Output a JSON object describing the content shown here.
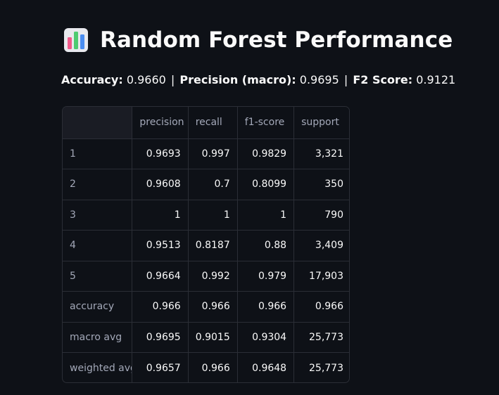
{
  "header": {
    "title": "Random Forest Performance",
    "icon": "bar-chart-icon"
  },
  "metrics": {
    "accuracy_label": "Accuracy:",
    "accuracy_value": "0.9660",
    "precision_label": "Precision (macro):",
    "precision_value": "0.9695",
    "f2_label": "F2 Score:",
    "f2_value": "0.9121",
    "separator": "|"
  },
  "report": {
    "columns": [
      "",
      "precision",
      "recall",
      "f1-score",
      "support"
    ],
    "rows": [
      [
        "1",
        "0.9693",
        "0.997",
        "0.9829",
        "3,321"
      ],
      [
        "2",
        "0.9608",
        "0.7",
        "0.8099",
        "350"
      ],
      [
        "3",
        "1",
        "1",
        "1",
        "790"
      ],
      [
        "4",
        "0.9513",
        "0.8187",
        "0.88",
        "3,409"
      ],
      [
        "5",
        "0.9664",
        "0.992",
        "0.979",
        "17,903"
      ],
      [
        "accuracy",
        "0.966",
        "0.966",
        "0.966",
        "0.966"
      ],
      [
        "macro avg",
        "0.9695",
        "0.9015",
        "0.9304",
        "25,773"
      ],
      [
        "weighted avg",
        "0.9657",
        "0.966",
        "0.9648",
        "25,773"
      ]
    ]
  },
  "colors": {
    "background": "#0e1117",
    "text": "#fafafa",
    "muted_text": "#a3a8b8",
    "border": "#2b2e36",
    "header_corner": "#1a1c24"
  }
}
